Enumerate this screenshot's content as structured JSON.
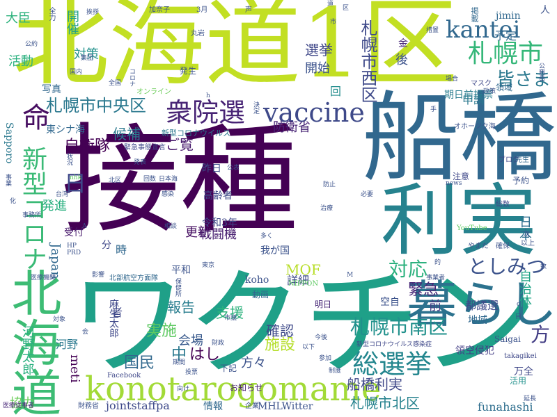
{
  "word_cloud": {
    "words": [
      {
        "text": "接種",
        "color": "#440154"
      },
      {
        "text": "船橋",
        "color": "#31688e"
      },
      {
        "text": "ワクチン",
        "color": "#1fa088"
      },
      {
        "text": "北海道1区",
        "color": "#c2df23"
      },
      {
        "text": "利実",
        "color": "#26828e"
      },
      {
        "text": "北海道",
        "color": "#3dbc74"
      },
      {
        "text": "暮らし",
        "color": "#2c728e"
      },
      {
        "text": "konotarogomame",
        "color": "#a2da37"
      },
      {
        "text": "vaccine",
        "color": "#3e4989"
      },
      {
        "text": "衆院選",
        "color": "#482475"
      },
      {
        "text": "札幌市",
        "color": "#35b779"
      },
      {
        "text": "kantei",
        "color": "#31688e"
      },
      {
        "text": "総選挙",
        "color": "#24868e"
      },
      {
        "text": "新型コロナ",
        "color": "#3aba76"
      },
      {
        "text": "札幌市中央区",
        "color": "#2a788e"
      },
      {
        "text": "命",
        "color": "#470e61"
      },
      {
        "text": "対応",
        "color": "#2cb17e"
      },
      {
        "text": "としみつ",
        "color": "#3b528b"
      },
      {
        "text": "札幌市南区",
        "color": "#21918c"
      },
      {
        "text": "船橋利実",
        "color": "#3f4889"
      },
      {
        "text": "札幌市北区",
        "color": "#26828e"
      },
      {
        "text": "札幌市西区",
        "color": "#3e4989"
      },
      {
        "text": "皆さま",
        "color": "#2a788e"
      },
      {
        "text": "方",
        "color": "#433e85"
      },
      {
        "text": "国民",
        "color": "#31688e"
      },
      {
        "text": "日",
        "color": "#3f4889"
      },
      {
        "text": "選挙",
        "color": "#3f4788"
      },
      {
        "text": "自衛隊",
        "color": "#440154"
      },
      {
        "text": "防衛省",
        "color": "#482475"
      },
      {
        "text": "候補",
        "color": "#2a788e"
      },
      {
        "text": "実施",
        "color": "#5ec962"
      },
      {
        "text": "報告",
        "color": "#287d8e"
      },
      {
        "text": "緊急",
        "color": "#482878"
      },
      {
        "text": "支援",
        "color": "#2db27d"
      },
      {
        "text": "確認",
        "color": "#3e4989"
      },
      {
        "text": "会場",
        "color": "#38598c"
      },
      {
        "text": "施設",
        "color": "#b5de2b"
      },
      {
        "text": "中",
        "color": "#2a788e"
      },
      {
        "text": "はし",
        "color": "#440154"
      },
      {
        "text": "方々",
        "color": "#3b528b"
      },
      {
        "text": "詳細",
        "color": "#3e4a89"
      },
      {
        "text": "ご覧",
        "color": "#481a6c"
      },
      {
        "text": "MOF",
        "color": "#b8de29"
      },
      {
        "text": "更新",
        "color": "#471063"
      },
      {
        "text": "戦闘機",
        "color": "#481f70"
      },
      {
        "text": "日本",
        "color": "#2e6e8e"
      },
      {
        "text": "自治体",
        "color": "#20a486"
      },
      {
        "text": "都議選",
        "color": "#3e4989"
      },
      {
        "text": "開始",
        "color": "#3b528b"
      },
      {
        "text": "前",
        "color": "#443983"
      },
      {
        "text": "申請",
        "color": "#2a788e"
      },
      {
        "text": "予定",
        "color": "#31688e"
      },
      {
        "text": "対策",
        "color": "#21918c"
      },
      {
        "text": "活動",
        "color": "#2ab07f"
      },
      {
        "text": "大臣",
        "color": "#2db27d"
      },
      {
        "text": "開催",
        "color": "#1fa088"
      },
      {
        "text": "回",
        "color": "#228d8d"
      },
      {
        "text": "後",
        "color": "#3b528b"
      },
      {
        "text": "金",
        "color": "#482878"
      },
      {
        "text": "期日前投票",
        "color": "#287c8e"
      },
      {
        "text": "河野太郎",
        "color": "#2ab07f"
      },
      {
        "text": "発進",
        "color": "#29af7f"
      },
      {
        "text": "Japan",
        "color": "#31688e"
      },
      {
        "text": "meti",
        "color": "#440154"
      },
      {
        "text": "河野",
        "color": "#2a788e"
      },
      {
        "text": "協力",
        "color": "#6ccd5a"
      },
      {
        "text": "jointstaffpa",
        "color": "#3e4989"
      },
      {
        "text": "情報",
        "color": "#31688e"
      },
      {
        "text": "MHLWitter",
        "color": "#3b528b"
      },
      {
        "text": "funahashi",
        "color": "#2e6e8e"
      },
      {
        "text": "万全",
        "color": "#3f4788"
      },
      {
        "text": "領空侵犯",
        "color": "#433e85"
      },
      {
        "text": "地域",
        "color": "#31688e"
      },
      {
        "text": "高齢者",
        "color": "#3e4a89"
      },
      {
        "text": "昨日",
        "color": "#3b528b"
      },
      {
        "text": "令和3年",
        "color": "#3f4889"
      },
      {
        "text": "我が国",
        "color": "#3b528b"
      },
      {
        "text": "平和",
        "color": "#3b528b"
      },
      {
        "text": "分",
        "color": "#3f4889"
      },
      {
        "text": "時",
        "color": "#31688e"
      },
      {
        "text": "者",
        "color": "#3f4889"
      },
      {
        "text": "東シナ海",
        "color": "#31688e"
      },
      {
        "text": "Sapporo",
        "color": "#2a788e"
      },
      {
        "text": "新型コロナウイルス",
        "color": "#2a788e"
      },
      {
        "text": "写真",
        "color": "#31688e"
      },
      {
        "text": "jimin",
        "color": "#31688e"
      },
      {
        "text": "人",
        "color": "#3b528b"
      },
      {
        "text": "掲載",
        "color": "#31688e"
      },
      {
        "text": "麻生太郎",
        "color": "#3f4889"
      },
      {
        "text": "空自",
        "color": "#3b528b"
      },
      {
        "text": "明日",
        "color": "#482878"
      },
      {
        "text": "下記",
        "color": "#3b528b"
      },
      {
        "text": "お知らせ",
        "color": "#481f70"
      },
      {
        "text": "koho",
        "color": "#3b528b"
      },
      {
        "text": "動画",
        "color": "#31688e"
      },
      {
        "text": "NIPPON",
        "color": "#5ec962"
      },
      {
        "text": "Saigai",
        "color": "#3b528b"
      },
      {
        "text": "takagikei",
        "color": "#3f4889"
      },
      {
        "text": "活用",
        "color": "#21918c"
      },
      {
        "text": "Facebook",
        "color": "#3f4889"
      },
      {
        "text": "財務省",
        "color": "#3b528b"
      },
      {
        "text": "企業",
        "color": "#3b528b"
      },
      {
        "text": "医療従事者",
        "color": "#482878"
      },
      {
        "text": "YouTube",
        "color": "#5ec962"
      },
      {
        "text": "北部航空方面隊",
        "color": "#31688e"
      },
      {
        "text": "オンライン",
        "color": "#6ccd5a"
      },
      {
        "text": "緊急事態宣言",
        "color": "#3f4889"
      },
      {
        "text": "新型コロナウイルス感染症",
        "color": "#3f4889"
      },
      {
        "text": "オホーツク海",
        "color": "#3b528b"
      },
      {
        "text": "受付",
        "color": "#481a6c"
      },
      {
        "text": "発生",
        "color": "#3b528b"
      },
      {
        "text": "領域",
        "color": "#31688e"
      },
      {
        "text": "マスク",
        "color": "#3f4889"
      },
      {
        "text": "注意",
        "color": "#3f4889"
      },
      {
        "text": "予約",
        "color": "#3b528b"
      },
      {
        "text": "総数",
        "color": "#3f4889"
      },
      {
        "text": "ブログ",
        "color": "#3f4889"
      },
      {
        "text": "先生",
        "color": "#31688e"
      },
      {
        "text": "やまだ",
        "color": "#3b528b"
      },
      {
        "text": "確保",
        "color": "#3b528b"
      },
      {
        "text": "以上",
        "color": "#3b528b"
      },
      {
        "text": "全力",
        "color": "#3b528b"
      },
      {
        "text": "加奈子",
        "color": "#3b528b"
      },
      {
        "text": "3月",
        "color": "#3b528b"
      },
      {
        "text": "声",
        "color": "#3b528b"
      },
      {
        "text": "公約",
        "color": "#3b528b"
      },
      {
        "text": "丸岩",
        "color": "#3b528b"
      },
      {
        "text": "集団",
        "color": "#3b528b"
      },
      {
        "text": "国内",
        "color": "#3b528b"
      },
      {
        "text": "全国",
        "color": "#3b528b"
      },
      {
        "text": "コロナ",
        "color": "#3b528b"
      },
      {
        "text": "挨拶",
        "color": "#3b528b"
      },
      {
        "text": "措置",
        "color": "#3b528b"
      },
      {
        "text": "場合",
        "color": "#3b528b"
      },
      {
        "text": "政策",
        "color": "#3b528b"
      },
      {
        "text": "公務員",
        "color": "#3b528b"
      },
      {
        "text": "北区",
        "color": "#3b528b"
      },
      {
        "text": "回数",
        "color": "#3b528b"
      },
      {
        "text": "日本海",
        "color": "#3b528b"
      },
      {
        "text": "台湾",
        "color": "#3b528b"
      },
      {
        "text": "nhk",
        "color": "#5ec962"
      },
      {
        "text": "公表",
        "color": "#3b528b"
      },
      {
        "text": "発表",
        "color": "#3b528b"
      },
      {
        "text": "感染",
        "color": "#3b528b"
      },
      {
        "text": "事業",
        "color": "#3b528b"
      },
      {
        "text": "事務所",
        "color": "#3b528b"
      },
      {
        "text": "相談",
        "color": "#3b528b"
      },
      {
        "text": "多く",
        "color": "#3b528b"
      },
      {
        "text": "必要",
        "color": "#3b528b"
      },
      {
        "text": "防止",
        "color": "#3b528b"
      },
      {
        "text": "治療",
        "color": "#3b528b"
      },
      {
        "text": "影響",
        "color": "#3b528b"
      },
      {
        "text": "東京",
        "color": "#3b528b"
      },
      {
        "text": "医療機関",
        "color": "#3b528b"
      },
      {
        "text": "事業者",
        "color": "#3b528b"
      },
      {
        "text": "延長",
        "color": "#3b528b"
      },
      {
        "text": "期間",
        "color": "#3b528b"
      },
      {
        "text": "投票",
        "color": "#3b528b"
      },
      {
        "text": "市議",
        "color": "#3b528b"
      },
      {
        "text": "以下",
        "color": "#3b528b"
      },
      {
        "text": "今後",
        "color": "#3b528b"
      },
      {
        "text": "参加",
        "color": "#3b528b"
      },
      {
        "text": "制度",
        "color": "#3b528b"
      },
      {
        "text": "対象",
        "color": "#3b528b"
      },
      {
        "text": "向け",
        "color": "#3b528b"
      },
      {
        "text": "HP",
        "color": "#3b528b"
      },
      {
        "text": "PRD",
        "color": "#3b528b"
      },
      {
        "text": "news",
        "color": "#3b528b"
      },
      {
        "text": "次",
        "color": "#3b528b"
      },
      {
        "text": "目",
        "color": "#3b528b"
      },
      {
        "text": "数",
        "color": "#3b528b"
      },
      {
        "text": "化",
        "color": "#3b528b"
      },
      {
        "text": "的",
        "color": "#3b528b"
      },
      {
        "text": "手",
        "color": "#3b528b"
      },
      {
        "text": "M",
        "color": "#3b528b"
      },
      {
        "text": "A",
        "color": "#3b528b"
      },
      {
        "text": "h",
        "color": "#3b528b"
      },
      {
        "text": "c",
        "color": "#3b528b"
      },
      {
        "text": "会",
        "color": "#3b528b"
      },
      {
        "text": "状況",
        "color": "#3b528b"
      },
      {
        "text": "決定",
        "color": "#3b528b"
      },
      {
        "text": "保健所",
        "color": "#3b528b"
      },
      {
        "text": "財政",
        "color": "#3b528b"
      },
      {
        "text": "市",
        "color": "#3b528b"
      },
      {
        "text": "道",
        "color": "#3b528b"
      },
      {
        "text": "区",
        "color": "#3b528b"
      }
    ]
  }
}
